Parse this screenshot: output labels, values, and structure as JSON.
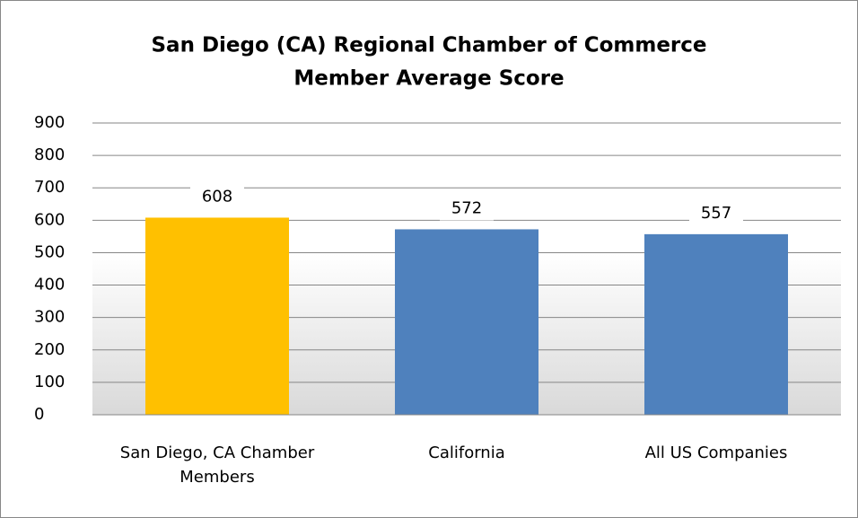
{
  "chart_data": {
    "type": "bar",
    "title": [
      "San Diego (CA) Regional Chamber of Commerce",
      "Member Average Score"
    ],
    "categories": [
      "San Diego, CA Chamber Members",
      "California",
      "All US Companies"
    ],
    "values": [
      608,
      572,
      557
    ],
    "colors": [
      "#ffc000",
      "#4f81bd",
      "#4f81bd"
    ],
    "ylim": [
      0,
      900
    ],
    "yticks": [
      0,
      100,
      200,
      300,
      400,
      500,
      600,
      700,
      800,
      900
    ],
    "grid": true
  }
}
